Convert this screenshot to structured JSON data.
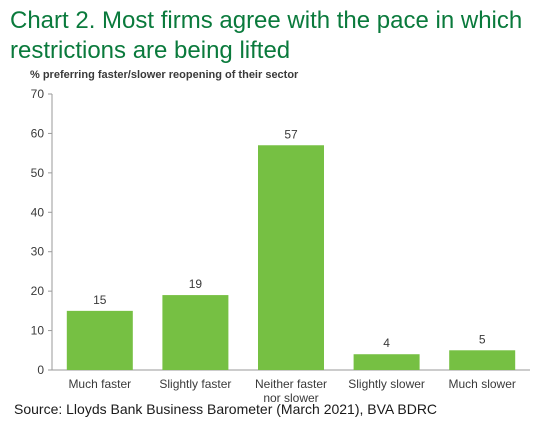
{
  "title": "Chart 2. Most firms agree with the pace in which restrictions are being lifted",
  "subtitle": "% preferring faster/slower reopening of their sector",
  "source": "Source: Lloyds Bank Business Barometer (March 2021), BVA BDRC",
  "colors": {
    "bar": "#76c043",
    "title": "#0a7a3c",
    "axis": "#9a9a9a",
    "text": "#3a3a3a"
  },
  "chart_data": {
    "type": "bar",
    "title": "Chart 2. Most firms agree with the pace in which restrictions are being lifted",
    "subtitle": "% preferring faster/slower reopening of their sector",
    "xlabel": "",
    "ylabel": "",
    "categories": [
      [
        "Much faster"
      ],
      [
        "Slightly faster"
      ],
      [
        "Neither faster",
        "nor slower"
      ],
      [
        "Slightly slower"
      ],
      [
        "Much slower"
      ]
    ],
    "values": [
      15,
      19,
      57,
      4,
      5
    ],
    "ylim": [
      0,
      70
    ],
    "yticks": [
      0,
      10,
      20,
      30,
      40,
      50,
      60,
      70
    ],
    "grid": false,
    "legend": "none",
    "data_labels": true
  }
}
